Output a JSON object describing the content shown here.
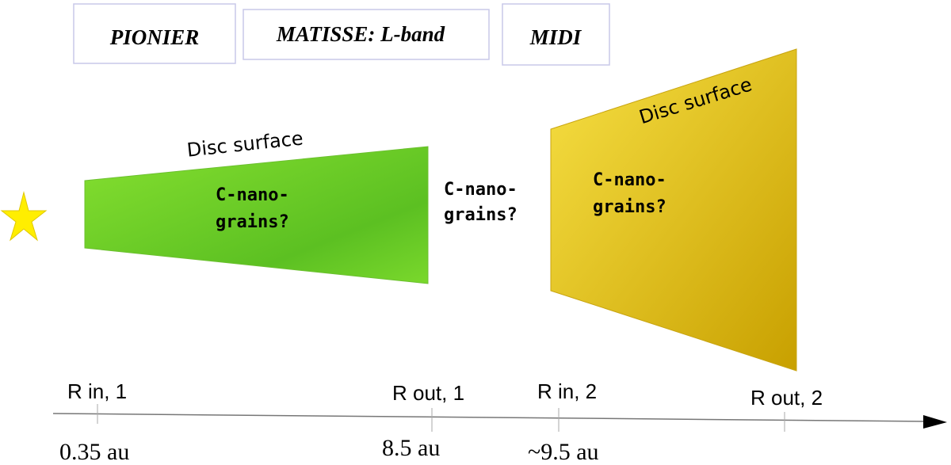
{
  "instruments": [
    "PIONIER",
    "MATISSE: L-band",
    "MIDI"
  ],
  "discs": [
    {
      "surface_label": "Disc surface",
      "grains_label": [
        "C-nano-",
        "grains?"
      ]
    },
    {
      "surface_label": "Disc surface",
      "grains_label": [
        "C-nano-",
        "grains?"
      ]
    }
  ],
  "gap_label": [
    "C-nano-",
    "grains?"
  ],
  "markers": [
    {
      "label": "R in, 1",
      "value": "0.35 au"
    },
    {
      "label": "R out, 1",
      "value": "8.5 au"
    },
    {
      "label": "R in, 2",
      "value": "~9.5 au"
    },
    {
      "label": "R out, 2"
    }
  ]
}
